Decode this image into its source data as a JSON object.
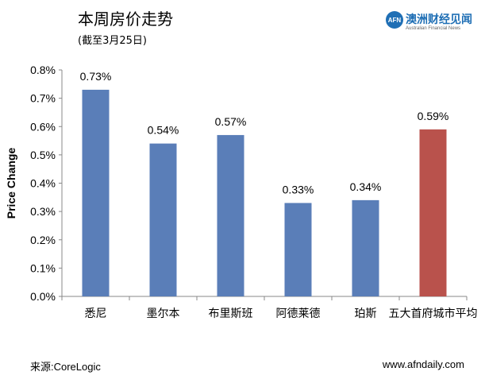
{
  "header": {
    "title": "本周房价走势",
    "subtitle": "(截至3月25日)"
  },
  "logo": {
    "mark": "AFN",
    "name": "澳洲财经见闻",
    "tagline": "Australian Financial News"
  },
  "footer": {
    "source": "来源:CoreLogic",
    "website": "www.afndaily.com"
  },
  "colors": {
    "bar_default": "#5a7eb8",
    "bar_highlight": "#b9524c",
    "brand": "#1f6fb5"
  },
  "chart_data": {
    "type": "bar",
    "title": "本周房价走势",
    "subtitle": "(截至3月25日)",
    "xlabel": "",
    "ylabel": "Price Change",
    "ylim": [
      0,
      0.8
    ],
    "yticks": [
      0.0,
      0.1,
      0.2,
      0.3,
      0.4,
      0.5,
      0.6,
      0.7,
      0.8
    ],
    "ytick_labels": [
      "0.0%",
      "0.1%",
      "0.2%",
      "0.3%",
      "0.4%",
      "0.5%",
      "0.6%",
      "0.7%",
      "0.8%"
    ],
    "grid": false,
    "categories": [
      "悉尼",
      "墨尔本",
      "布里斯班",
      "阿德莱德",
      "珀斯",
      "五大首府城市平均"
    ],
    "values": [
      0.73,
      0.54,
      0.57,
      0.33,
      0.34,
      0.59
    ],
    "data_labels": [
      "0.73%",
      "0.54%",
      "0.57%",
      "0.33%",
      "0.34%",
      "0.59%"
    ],
    "highlight_index": 5
  }
}
